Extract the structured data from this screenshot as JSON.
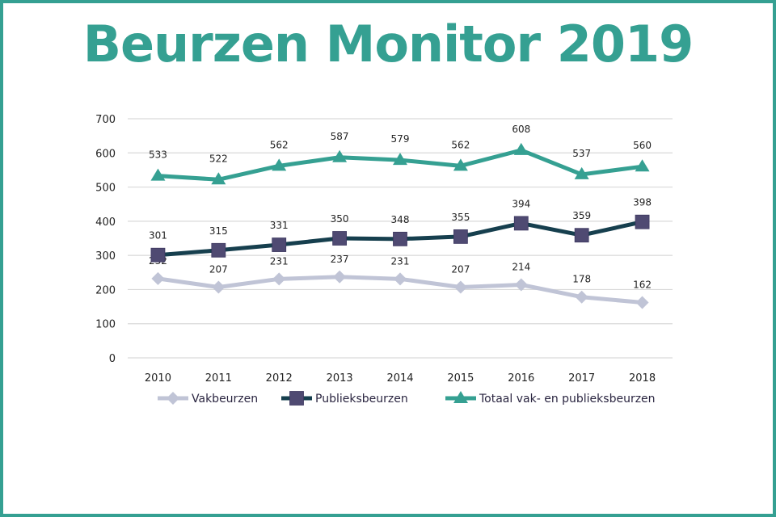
{
  "page": {
    "title": "Beurzen Monitor 2019",
    "accent_color": "#35a092"
  },
  "chart_data": {
    "type": "line",
    "title": "Beurzen Monitor 2019",
    "xlabel": "",
    "ylabel": "",
    "categories": [
      "2010",
      "2011",
      "2012",
      "2013",
      "2014",
      "2015",
      "2016",
      "2017",
      "2018"
    ],
    "ylim": [
      0,
      700
    ],
    "yticks": [
      "0",
      "100",
      "200",
      "300",
      "400",
      "500",
      "600",
      "700"
    ],
    "grid": true,
    "legend_position": "bottom",
    "series": [
      {
        "name": "Vakbeurzen",
        "marker": "diamond",
        "line_color": "#c0c4d6",
        "marker_color": "#c0c4d6",
        "values": [
          232,
          207,
          231,
          237,
          231,
          207,
          214,
          178,
          162
        ]
      },
      {
        "name": "Publieksbeurzen",
        "marker": "square",
        "line_color": "#163f4e",
        "marker_color": "#4f4a72",
        "values": [
          301,
          315,
          331,
          350,
          348,
          355,
          394,
          359,
          398
        ]
      },
      {
        "name": "Totaal vak- en publieksbeurzen",
        "marker": "triangle",
        "line_color": "#35a092",
        "marker_color": "#35a092",
        "values": [
          533,
          522,
          562,
          587,
          579,
          562,
          608,
          537,
          560
        ]
      }
    ]
  }
}
